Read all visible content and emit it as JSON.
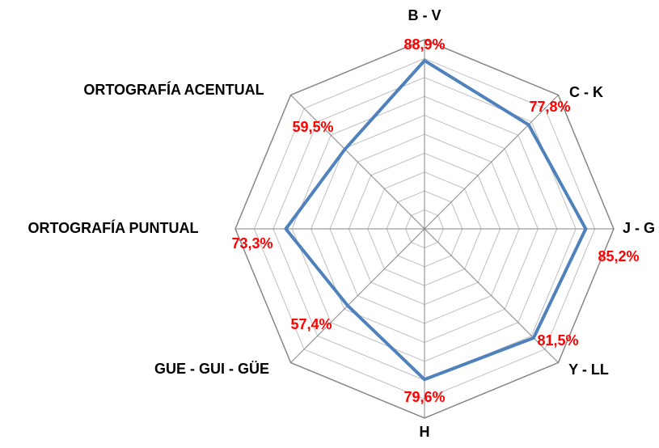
{
  "chart_data": {
    "type": "radar",
    "categories": [
      "B - V",
      "C - K",
      "J - G",
      "Y - LL",
      "H",
      "GUE - GUI - GÜE",
      "ORTOGRAFÍA PUNTUAL",
      "ORTOGRAFÍA ACENTUAL"
    ],
    "values": [
      88.9,
      77.8,
      85.2,
      81.5,
      79.6,
      57.4,
      73.3,
      59.5
    ],
    "value_labels": [
      "88,9%",
      "77,8%",
      "85,2%",
      "81,5%",
      "79,6%",
      "57,4%",
      "73,3%",
      "59,5%"
    ],
    "color": "#4f81bd",
    "ylim": [
      0,
      100
    ],
    "yticks": [
      0,
      10,
      20,
      30,
      40,
      50,
      60,
      70,
      80,
      90,
      100
    ],
    "grid": true
  }
}
